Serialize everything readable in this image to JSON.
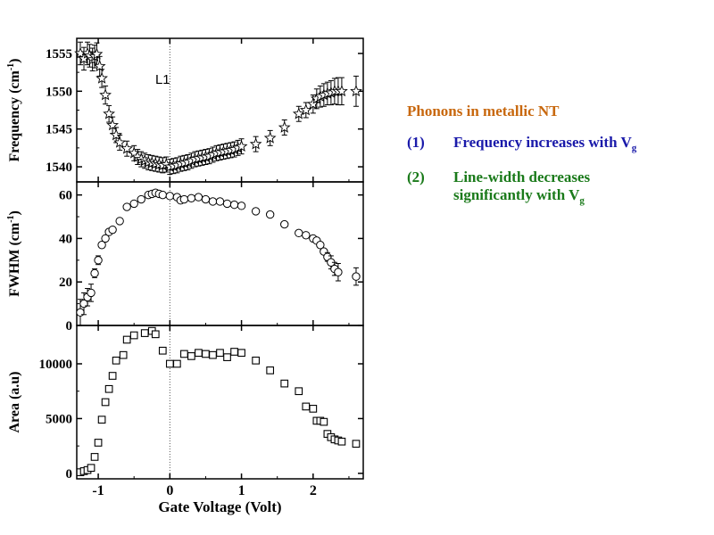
{
  "chart_data": [
    {
      "type": "scatter",
      "name": "frequency",
      "ylabel": "Frequency (cm-1)",
      "ylabel_main": "Frequency (cm",
      "ylabel_sup": "-1",
      "ylabel_close": ")",
      "ylim": [
        1538,
        1557
      ],
      "yticks": [
        1540,
        1545,
        1550,
        1555
      ],
      "xlim": [
        -1.3,
        2.7
      ],
      "marker": "star",
      "annotation": "L1",
      "annotation_x": -0.1,
      "annotation_y": 1551,
      "x": [
        -1.25,
        -1.2,
        -1.15,
        -1.12,
        -1.08,
        -1.05,
        -1.02,
        -0.98,
        -0.95,
        -0.9,
        -0.85,
        -0.8,
        -0.75,
        -0.7,
        -0.6,
        -0.5,
        -0.45,
        -0.4,
        -0.35,
        -0.3,
        -0.25,
        -0.2,
        -0.15,
        -0.1,
        -0.05,
        0.0,
        0.05,
        0.1,
        0.15,
        0.2,
        0.25,
        0.3,
        0.35,
        0.4,
        0.45,
        0.5,
        0.55,
        0.6,
        0.65,
        0.7,
        0.75,
        0.8,
        0.85,
        0.9,
        0.95,
        1.0,
        1.2,
        1.4,
        1.6,
        1.8,
        1.9,
        2.0,
        2.05,
        2.1,
        2.15,
        2.2,
        2.25,
        2.3,
        2.35,
        2.4,
        2.6
      ],
      "y": [
        1555,
        1554.3,
        1555,
        1554.7,
        1554.2,
        1554.6,
        1554.9,
        1553.3,
        1551.7,
        1549.5,
        1547,
        1545.5,
        1544.2,
        1543.2,
        1542.4,
        1541.8,
        1541.3,
        1541,
        1540.8,
        1540.6,
        1540.5,
        1540.4,
        1540.3,
        1540.2,
        1540.3,
        1540,
        1540.1,
        1540.2,
        1540.4,
        1540.5,
        1540.6,
        1540.8,
        1541,
        1541.1,
        1541.2,
        1541.3,
        1541.4,
        1541.6,
        1541.8,
        1541.9,
        1542,
        1542.1,
        1542.2,
        1542.3,
        1542.5,
        1542.7,
        1543,
        1543.8,
        1545.2,
        1547,
        1547.5,
        1548.3,
        1549,
        1549.3,
        1549.5,
        1549.7,
        1549.8,
        1550,
        1550,
        1550,
        1550
      ],
      "err": [
        1.5,
        1.5,
        1.5,
        1.5,
        1.5,
        1.5,
        1.5,
        1.3,
        1.2,
        1.2,
        1.1,
        1.1,
        1.0,
        1.0,
        1.0,
        1.0,
        1.0,
        1.0,
        1.0,
        1.0,
        1.0,
        1.0,
        1.0,
        1.0,
        1.0,
        1.0,
        1.0,
        1.0,
        1.0,
        1.0,
        1.0,
        1.0,
        1.0,
        1.0,
        1.0,
        1.0,
        1.0,
        1.0,
        1.0,
        1.0,
        1.0,
        1.0,
        1.0,
        1.0,
        1.0,
        1.0,
        1.0,
        1.0,
        1.0,
        1.0,
        1.0,
        1.2,
        1.3,
        1.4,
        1.5,
        1.5,
        1.6,
        1.7,
        1.8,
        1.8,
        2.0
      ]
    },
    {
      "type": "scatter",
      "name": "fwhm",
      "ylabel": "FWHM (cm-1)",
      "ylabel_main": "FWHM (cm",
      "ylabel_sup": "-1",
      "ylabel_close": ")",
      "ylim": [
        0,
        66
      ],
      "yticks": [
        0,
        20,
        40,
        60
      ],
      "xlim": [
        -1.3,
        2.7
      ],
      "marker": "circle",
      "x": [
        -1.25,
        -1.2,
        -1.15,
        -1.1,
        -1.05,
        -1.0,
        -0.95,
        -0.9,
        -0.85,
        -0.8,
        -0.7,
        -0.6,
        -0.5,
        -0.4,
        -0.3,
        -0.25,
        -0.2,
        -0.15,
        -0.1,
        0.0,
        0.1,
        0.15,
        0.2,
        0.3,
        0.4,
        0.5,
        0.6,
        0.7,
        0.8,
        0.9,
        1.0,
        1.2,
        1.4,
        1.6,
        1.8,
        1.9,
        2.0,
        2.05,
        2.1,
        2.15,
        2.2,
        2.25,
        2.3,
        2.35,
        2.6
      ],
      "y": [
        6,
        10,
        13,
        15,
        24,
        30,
        37,
        40,
        43,
        44,
        48,
        54.5,
        56,
        58,
        60,
        60.5,
        61,
        60.5,
        60,
        59.5,
        59,
        57.5,
        58,
        58.5,
        59,
        58,
        57,
        57,
        56,
        55.5,
        55,
        52.5,
        51,
        46.5,
        42.5,
        41.5,
        40,
        39,
        37,
        34,
        31.5,
        29,
        26,
        24.5,
        22.5
      ],
      "err": [
        6,
        5,
        4,
        4,
        2,
        2,
        1,
        1,
        1,
        1,
        1,
        1,
        1,
        1,
        1,
        1,
        1,
        1,
        1,
        1,
        1,
        1,
        1,
        1,
        1,
        1,
        1,
        1,
        1,
        1,
        1,
        1,
        1,
        1,
        1,
        1,
        1,
        1,
        1,
        1,
        2,
        3,
        3,
        4,
        4
      ]
    },
    {
      "type": "scatter",
      "name": "area",
      "ylabel": "Area (a.u)",
      "ylabel_main": "Area (a.u)",
      "ylabel_sup": "",
      "ylabel_close": "",
      "ylim": [
        -500,
        13500
      ],
      "yticks": [
        0,
        5000,
        10000
      ],
      "yticklabels": [
        "0",
        "5000",
        "10000"
      ],
      "xlim": [
        -1.3,
        2.7
      ],
      "xticks": [
        -1,
        0,
        1,
        2
      ],
      "xticklabels": [
        "-1",
        "0",
        "1",
        "2"
      ],
      "xlabel": "Gate Voltage (Volt)",
      "marker": "square",
      "x": [
        -1.25,
        -1.2,
        -1.15,
        -1.1,
        -1.05,
        -1.0,
        -0.95,
        -0.9,
        -0.85,
        -0.8,
        -0.75,
        -0.65,
        -0.6,
        -0.5,
        -0.35,
        -0.25,
        -0.2,
        -0.1,
        0.0,
        0.1,
        0.2,
        0.3,
        0.4,
        0.5,
        0.6,
        0.7,
        0.8,
        0.9,
        1.0,
        1.2,
        1.4,
        1.6,
        1.8,
        1.9,
        2.0,
        2.05,
        2.1,
        2.15,
        2.2,
        2.25,
        2.3,
        2.35,
        2.4,
        2.6
      ],
      "y": [
        100,
        200,
        300,
        500,
        1500,
        2800,
        4900,
        6500,
        7700,
        8900,
        10300,
        10800,
        12200,
        12600,
        12800,
        13000,
        12700,
        11200,
        10000,
        10000,
        10900,
        10700,
        11000,
        10900,
        10800,
        11000,
        10600,
        11100,
        11000,
        10300,
        9400,
        8200,
        7500,
        6100,
        5900,
        4800,
        4800,
        4700,
        3600,
        3300,
        3100,
        3000,
        2900,
        2700
      ]
    }
  ],
  "notes": {
    "title": "Phonons in metallic NT",
    "title_color": "#c8680e",
    "item1_num": "(1)",
    "item1_text": "Frequency increases with V",
    "item1_sub": "g",
    "item1_color": "#1a1aaa",
    "item2_num": "(2)",
    "item2_line1": "Line-width decreases",
    "item2_line2": "significantly with V",
    "item2_sub": "g",
    "item2_color": "#1a7a1a"
  }
}
